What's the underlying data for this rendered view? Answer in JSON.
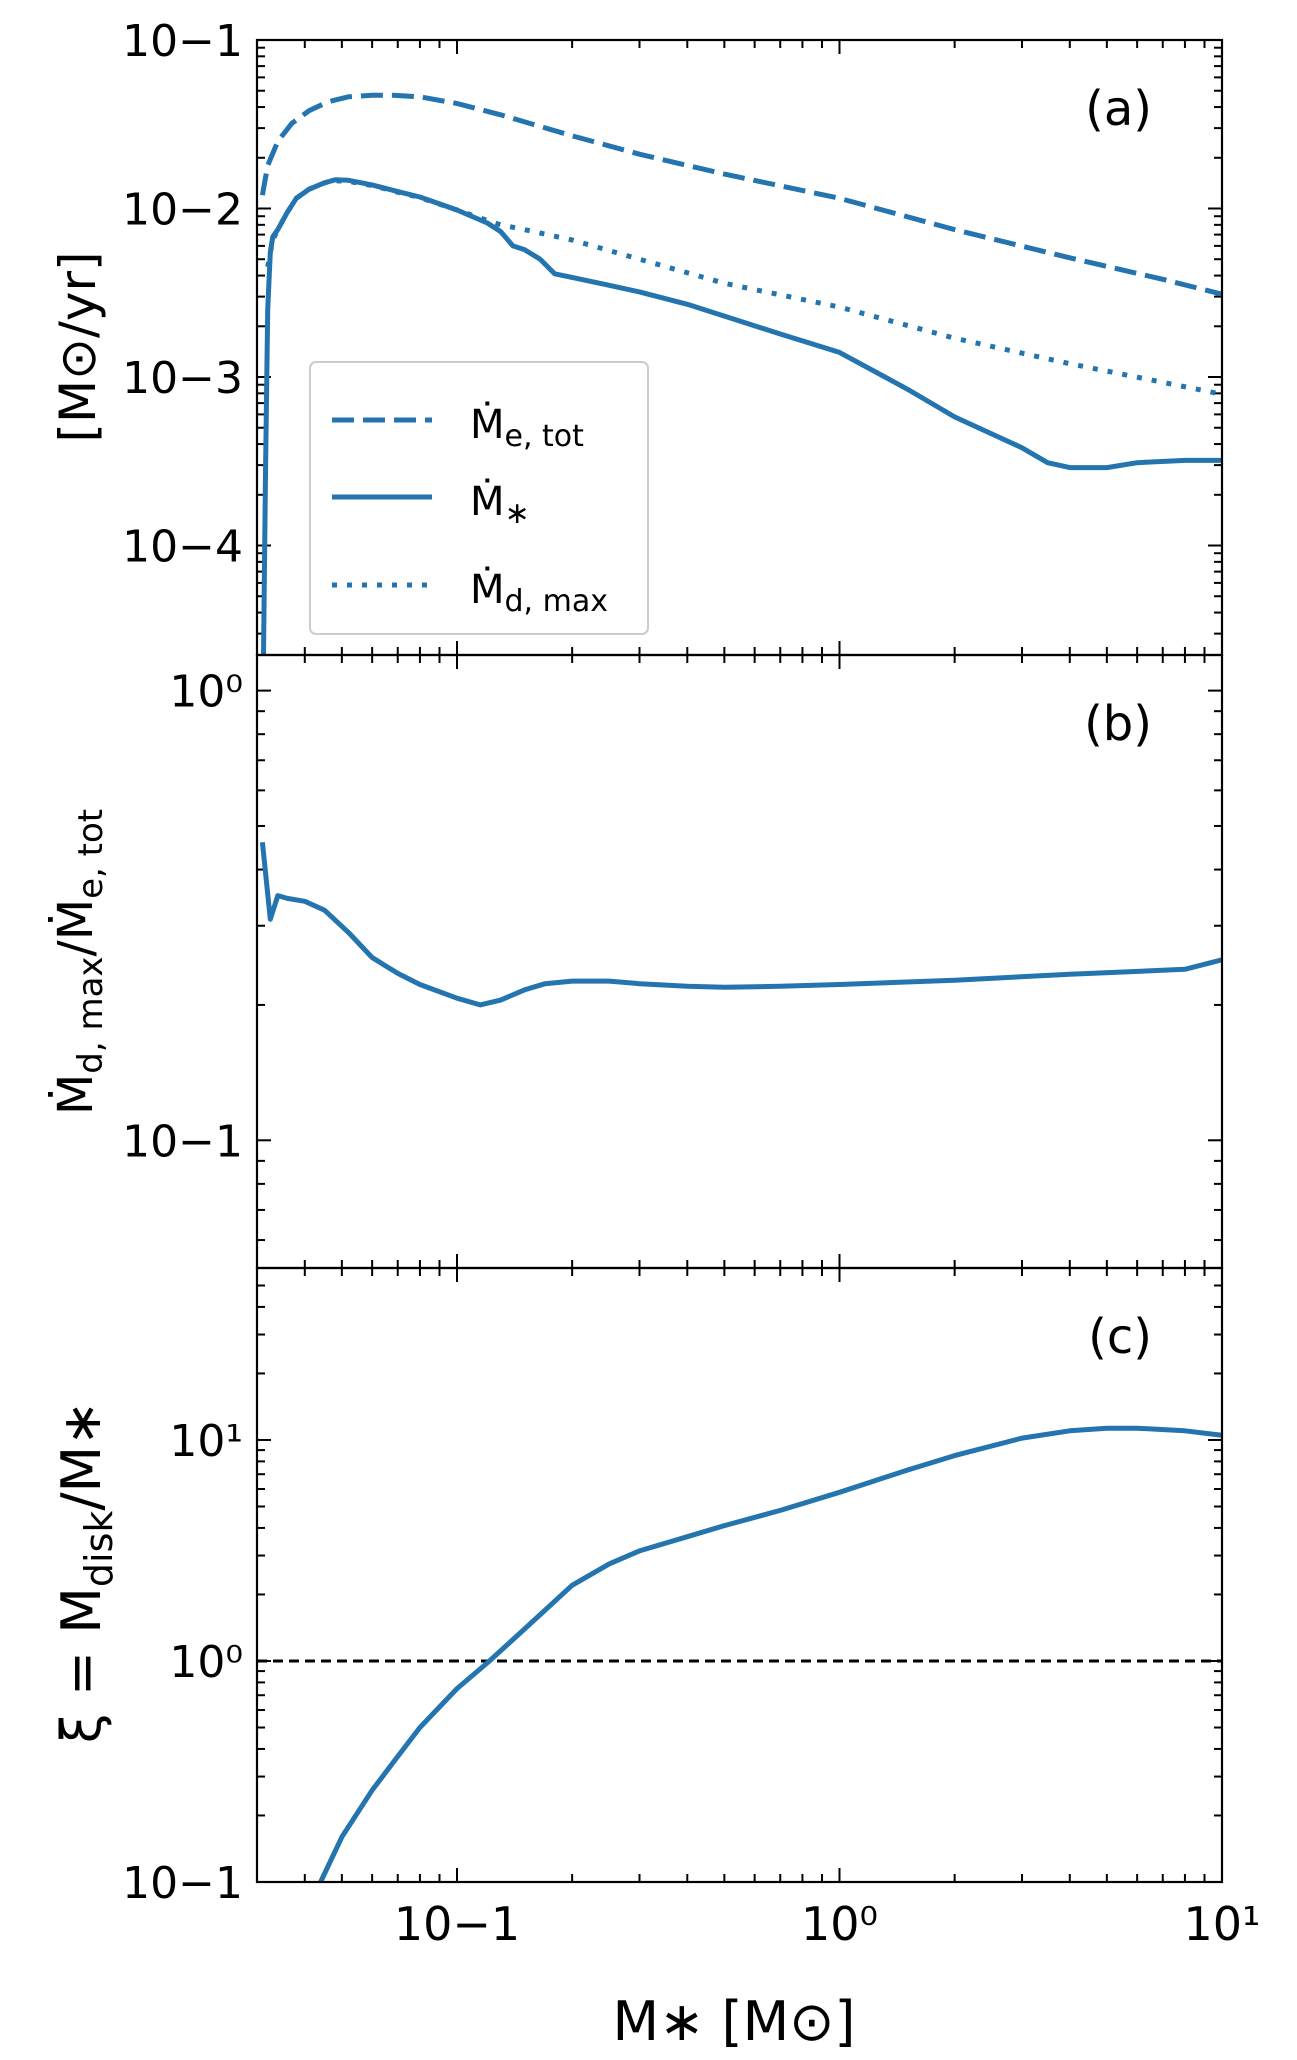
{
  "figure": {
    "x_label": "M∗ [M⊙]",
    "series_color": "#2474b0",
    "reference_line_color": "#000000"
  },
  "chart_data": [
    {
      "type": "line",
      "panel": "(a)",
      "title": "",
      "xlabel": "M∗ [M⊙]",
      "ylabel": "[M⊙/yr]",
      "x_scale": "log",
      "y_scale": "log",
      "xlim": [
        0.03,
        10
      ],
      "ylim": [
        2.24e-05,
        0.1
      ],
      "x_ticks": [
        "10−1",
        "10⁰",
        "10¹"
      ],
      "y_ticks": [
        "10−4",
        "10−3",
        "10−2",
        "10−1"
      ],
      "legend_placement": "center-left",
      "series": [
        {
          "name": "Ṁe,tot",
          "legend_main": "Ṁ",
          "legend_sub": "e, tot",
          "style": "dashed",
          "x": [
            0.031,
            0.032,
            0.034,
            0.037,
            0.041,
            0.046,
            0.052,
            0.06,
            0.068,
            0.08,
            0.1,
            0.13,
            0.2,
            0.3,
            0.5,
            1.0,
            2.0,
            4.0,
            7.0,
            10.0
          ],
          "y": [
            0.012,
            0.018,
            0.025,
            0.032,
            0.038,
            0.043,
            0.046,
            0.047,
            0.047,
            0.046,
            0.042,
            0.036,
            0.027,
            0.021,
            0.016,
            0.0115,
            0.0075,
            0.0051,
            0.0038,
            0.0031
          ]
        },
        {
          "name": "Ṁ∗",
          "legend_main": "Ṁ",
          "legend_sub": "∗",
          "style": "solid",
          "x": [
            0.0312,
            0.0316,
            0.032,
            0.0325,
            0.033,
            0.034,
            0.036,
            0.038,
            0.041,
            0.045,
            0.048,
            0.052,
            0.06,
            0.07,
            0.08,
            0.1,
            0.12,
            0.13,
            0.14,
            0.15,
            0.165,
            0.18,
            0.2,
            0.25,
            0.3,
            0.4,
            0.5,
            0.7,
            1.0,
            1.5,
            2.0,
            3.0,
            3.5,
            4.0,
            5.0,
            6.0,
            8.0,
            10.0
          ],
          "y": [
            2.24e-05,
            0.0003,
            0.0025,
            0.0055,
            0.0068,
            0.0075,
            0.0095,
            0.0115,
            0.013,
            0.0142,
            0.0148,
            0.0147,
            0.0138,
            0.0126,
            0.0117,
            0.0098,
            0.0082,
            0.0073,
            0.006,
            0.0057,
            0.005,
            0.0041,
            0.0039,
            0.0035,
            0.0032,
            0.0027,
            0.0023,
            0.0018,
            0.0014,
            0.00085,
            0.00058,
            0.00038,
            0.00031,
            0.00029,
            0.00029,
            0.00031,
            0.00032,
            0.00032
          ]
        },
        {
          "name": "Ṁd,max",
          "legend_main": "Ṁ",
          "legend_sub": "d, max",
          "style": "dotted",
          "x": [
            0.032,
            0.033,
            0.034,
            0.036,
            0.038,
            0.041,
            0.045,
            0.048,
            0.052,
            0.06,
            0.07,
            0.08,
            0.1,
            0.12,
            0.13,
            0.15,
            0.2,
            0.3,
            0.5,
            1.0,
            2.0,
            4.0,
            7.0,
            10.0
          ],
          "y": [
            0.0045,
            0.0065,
            0.0075,
            0.0095,
            0.0115,
            0.013,
            0.0142,
            0.0146,
            0.0145,
            0.0137,
            0.0125,
            0.0116,
            0.0098,
            0.0085,
            0.008,
            0.0075,
            0.0065,
            0.005,
            0.0036,
            0.0026,
            0.0017,
            0.0012,
            0.00093,
            0.00079
          ]
        }
      ],
      "annotations": [
        {
          "text": "(a)",
          "position": "top-right"
        }
      ]
    },
    {
      "type": "line",
      "panel": "(b)",
      "title": "",
      "xlabel": "M∗ [M⊙]",
      "ylabel": "Ṁd,max/Ṁe,tot",
      "ylabel_parts": [
        "Ṁ",
        "d, max",
        "/Ṁ",
        "e, tot"
      ],
      "x_scale": "log",
      "y_scale": "log",
      "xlim": [
        0.03,
        10
      ],
      "ylim": [
        0.052,
        1.2
      ],
      "x_ticks": [
        "10−1",
        "10⁰",
        "10¹"
      ],
      "y_ticks": [
        "10−1",
        "10⁰"
      ],
      "series": [
        {
          "name": "Ṁd,max/Ṁe,tot",
          "style": "solid",
          "x": [
            0.031,
            0.0325,
            0.034,
            0.036,
            0.04,
            0.045,
            0.052,
            0.06,
            0.07,
            0.08,
            0.1,
            0.115,
            0.13,
            0.15,
            0.17,
            0.2,
            0.25,
            0.3,
            0.4,
            0.5,
            0.7,
            1.0,
            2.0,
            4.0,
            8.0,
            10.0
          ],
          "y": [
            0.46,
            0.31,
            0.35,
            0.345,
            0.34,
            0.325,
            0.29,
            0.255,
            0.235,
            0.222,
            0.207,
            0.2,
            0.205,
            0.216,
            0.223,
            0.226,
            0.226,
            0.223,
            0.22,
            0.219,
            0.22,
            0.222,
            0.227,
            0.234,
            0.24,
            0.252
          ]
        }
      ],
      "annotations": [
        {
          "text": "(b)",
          "position": "top-right"
        }
      ]
    },
    {
      "type": "line",
      "panel": "(c)",
      "title": "",
      "xlabel": "M∗ [M⊙]",
      "ylabel": "ξ = Mdisk/M∗",
      "ylabel_parts": [
        "ξ = M",
        "disk",
        "/M∗"
      ],
      "x_scale": "log",
      "y_scale": "log",
      "xlim": [
        0.03,
        10
      ],
      "ylim": [
        0.1,
        60
      ],
      "x_ticks": [
        "10−1",
        "10⁰",
        "10¹"
      ],
      "y_ticks": [
        "10−1",
        "10⁰",
        "10¹"
      ],
      "reference_line": {
        "y": 1.0,
        "style": "dashed",
        "color": "#000000"
      },
      "series": [
        {
          "name": "ξ",
          "style": "solid",
          "x": [
            0.044,
            0.05,
            0.06,
            0.07,
            0.08,
            0.1,
            0.12,
            0.14,
            0.17,
            0.2,
            0.25,
            0.3,
            0.4,
            0.5,
            0.7,
            1.0,
            1.5,
            2.0,
            3.0,
            4.0,
            5.0,
            6.0,
            8.0,
            10.0
          ],
          "y": [
            0.1,
            0.16,
            0.26,
            0.37,
            0.5,
            0.75,
            0.98,
            1.25,
            1.7,
            2.2,
            2.75,
            3.15,
            3.65,
            4.1,
            4.8,
            5.8,
            7.3,
            8.5,
            10.2,
            11.0,
            11.3,
            11.3,
            11.0,
            10.5
          ]
        }
      ],
      "annotations": [
        {
          "text": "(c)",
          "position": "top-right"
        }
      ]
    }
  ]
}
